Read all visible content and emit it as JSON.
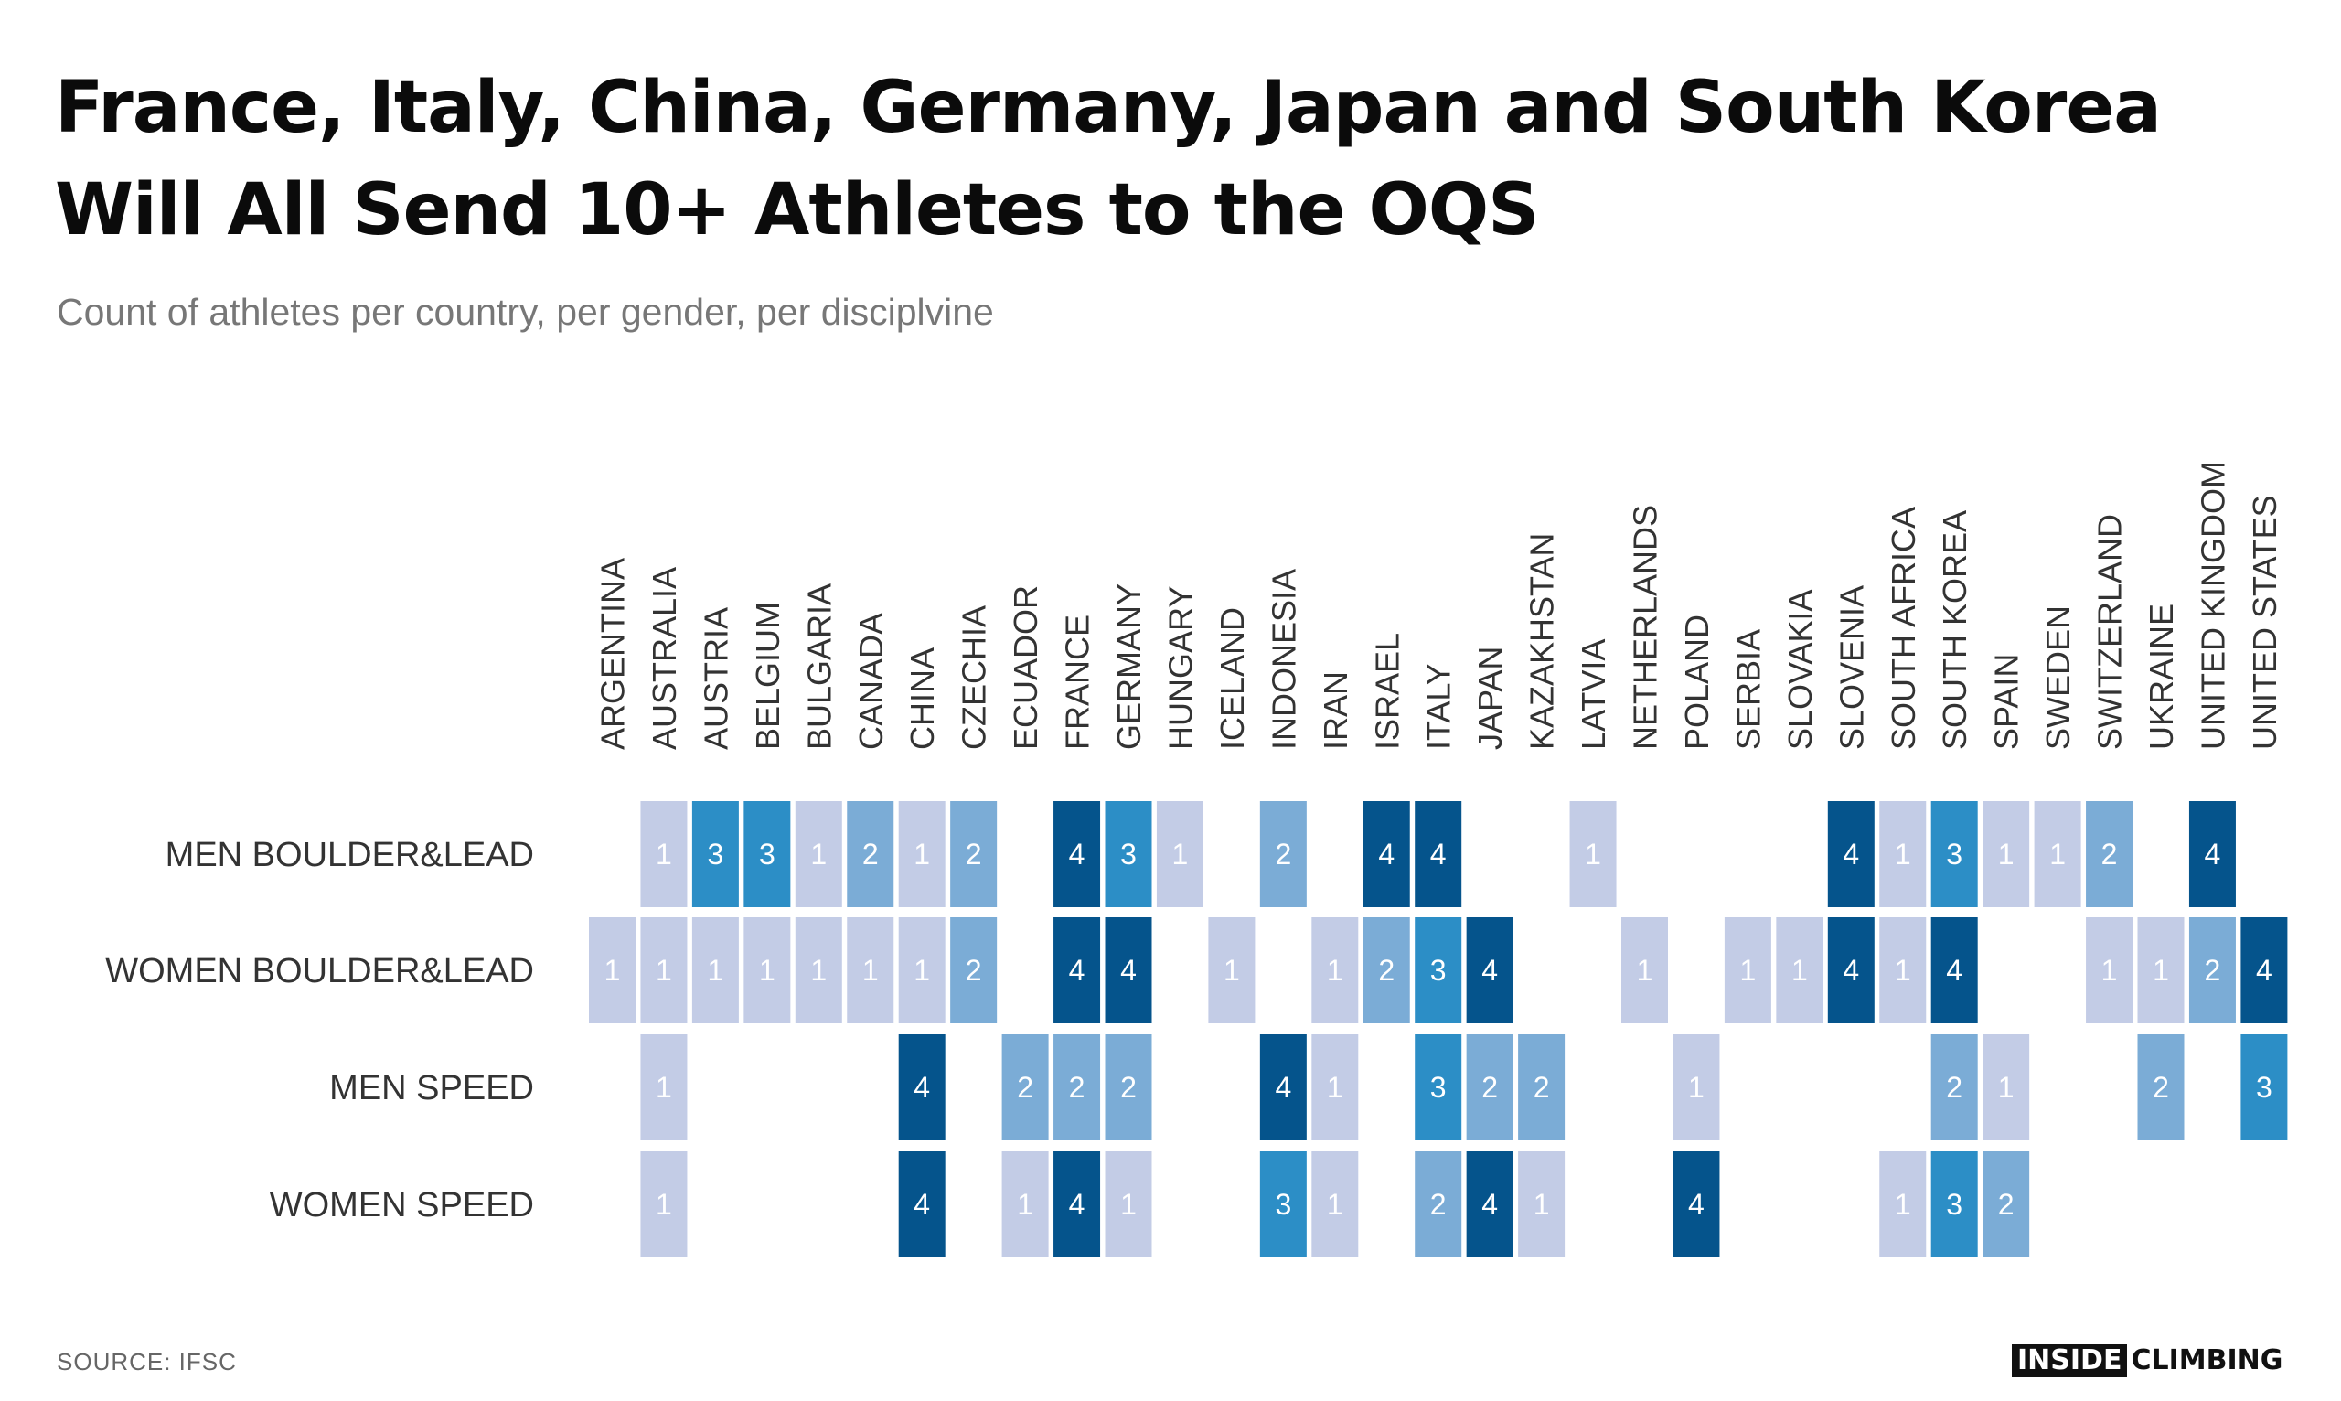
{
  "title_lines": [
    "France, Italy, China, Germany, Japan and South Korea",
    "Will All Send 10+ Athletes to the OQS"
  ],
  "subtitle": "Count of athletes per country, per gender, per disciplvine",
  "source": "SOURCE: IFSC",
  "logo": {
    "inside": "INSIDE",
    "climbing": "CLIMBING"
  },
  "colors": {
    "1": "#c3cce6",
    "2": "#7bacd6",
    "3": "#2c8ec6",
    "4": "#05548c",
    "text": "#ffffff",
    "label": "#333333"
  },
  "chart_data": {
    "type": "heatmap",
    "title": "France, Italy, China, Germany, Japan and South Korea Will All Send 10+ Athletes to the OQS",
    "subtitle": "Count of athletes per country, per gender, per disciplvine",
    "columns": [
      "ARGENTINA",
      "AUSTRALIA",
      "AUSTRIA",
      "BELGIUM",
      "BULGARIA",
      "CANADA",
      "CHINA",
      "CZECHIA",
      "ECUADOR",
      "FRANCE",
      "GERMANY",
      "HUNGARY",
      "ICELAND",
      "INDONESIA",
      "IRAN",
      "ISRAEL",
      "ITALY",
      "JAPAN",
      "KAZAKHSTAN",
      "LATVIA",
      "NETHERLANDS",
      "POLAND",
      "SERBIA",
      "SLOVAKIA",
      "SLOVENIA",
      "SOUTH AFRICA",
      "SOUTH KOREA",
      "SPAIN",
      "SWEDEN",
      "SWITZERLAND",
      "UKRAINE",
      "UNITED KINGDOM",
      "UNITED STATES"
    ],
    "rows": [
      "MEN BOULDER&LEAD",
      "WOMEN BOULDER&LEAD",
      "MEN SPEED",
      "WOMEN SPEED"
    ],
    "values": [
      [
        null,
        1,
        3,
        3,
        1,
        2,
        1,
        2,
        null,
        4,
        3,
        1,
        null,
        2,
        null,
        4,
        4,
        null,
        null,
        1,
        null,
        null,
        null,
        null,
        4,
        1,
        3,
        1,
        1,
        2,
        null,
        4,
        null
      ],
      [
        1,
        1,
        1,
        1,
        1,
        1,
        1,
        2,
        null,
        4,
        4,
        null,
        1,
        null,
        1,
        2,
        3,
        4,
        null,
        null,
        1,
        null,
        1,
        1,
        4,
        1,
        4,
        null,
        null,
        1,
        1,
        2,
        4
      ],
      [
        null,
        1,
        null,
        null,
        null,
        null,
        4,
        null,
        2,
        2,
        2,
        null,
        null,
        4,
        1,
        null,
        3,
        2,
        2,
        null,
        null,
        1,
        null,
        null,
        null,
        null,
        2,
        1,
        null,
        null,
        2,
        null,
        3
      ],
      [
        null,
        1,
        null,
        null,
        null,
        null,
        4,
        null,
        1,
        4,
        1,
        null,
        null,
        3,
        1,
        null,
        2,
        4,
        1,
        null,
        null,
        4,
        null,
        null,
        null,
        1,
        3,
        2,
        null,
        null,
        null,
        null,
        null
      ]
    ]
  }
}
